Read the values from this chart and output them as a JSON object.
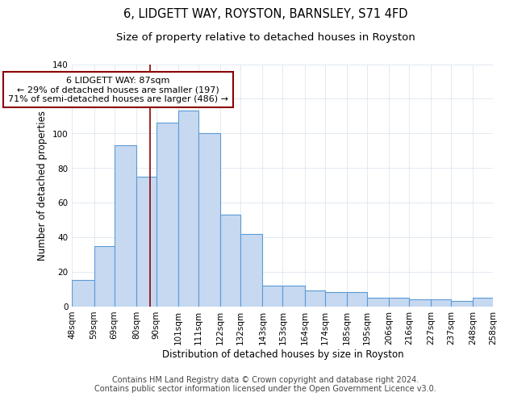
{
  "title": "6, LIDGETT WAY, ROYSTON, BARNSLEY, S71 4FD",
  "subtitle": "Size of property relative to detached houses in Royston",
  "xlabel": "Distribution of detached houses by size in Royston",
  "ylabel": "Number of detached properties",
  "bar_edges": [
    48,
    59,
    69,
    80,
    90,
    101,
    111,
    122,
    132,
    143,
    153,
    164,
    174,
    185,
    195,
    206,
    216,
    227,
    237,
    248,
    258
  ],
  "bar_heights": [
    15,
    35,
    93,
    75,
    106,
    113,
    100,
    53,
    42,
    12,
    12,
    9,
    8,
    8,
    5,
    5,
    4,
    4,
    3,
    5
  ],
  "bar_color": "#c6d9f1",
  "bar_edge_color": "#5b9bd5",
  "reference_line_x": 87,
  "reference_line_color": "#8b0000",
  "annotation_line1": "6 LIDGETT WAY: 87sqm",
  "annotation_line2": "← 29% of detached houses are smaller (197)",
  "annotation_line3": "71% of semi-detached houses are larger (486) →",
  "annotation_box_color": "#ffffff",
  "annotation_box_edge_color": "#8b0000",
  "ylim": [
    0,
    140
  ],
  "tick_labels": [
    "48sqm",
    "59sqm",
    "69sqm",
    "80sqm",
    "90sqm",
    "101sqm",
    "111sqm",
    "122sqm",
    "132sqm",
    "143sqm",
    "153sqm",
    "164sqm",
    "174sqm",
    "185sqm",
    "195sqm",
    "206sqm",
    "216sqm",
    "227sqm",
    "237sqm",
    "248sqm",
    "258sqm"
  ],
  "footnote": "Contains HM Land Registry data © Crown copyright and database right 2024.\nContains public sector information licensed under the Open Government Licence v3.0.",
  "bg_color": "#ffffff",
  "grid_color": "#dce6f0",
  "title_fontsize": 10.5,
  "subtitle_fontsize": 9.5,
  "axis_label_fontsize": 8.5,
  "tick_fontsize": 7.5,
  "annotation_fontsize": 8,
  "footnote_fontsize": 7
}
